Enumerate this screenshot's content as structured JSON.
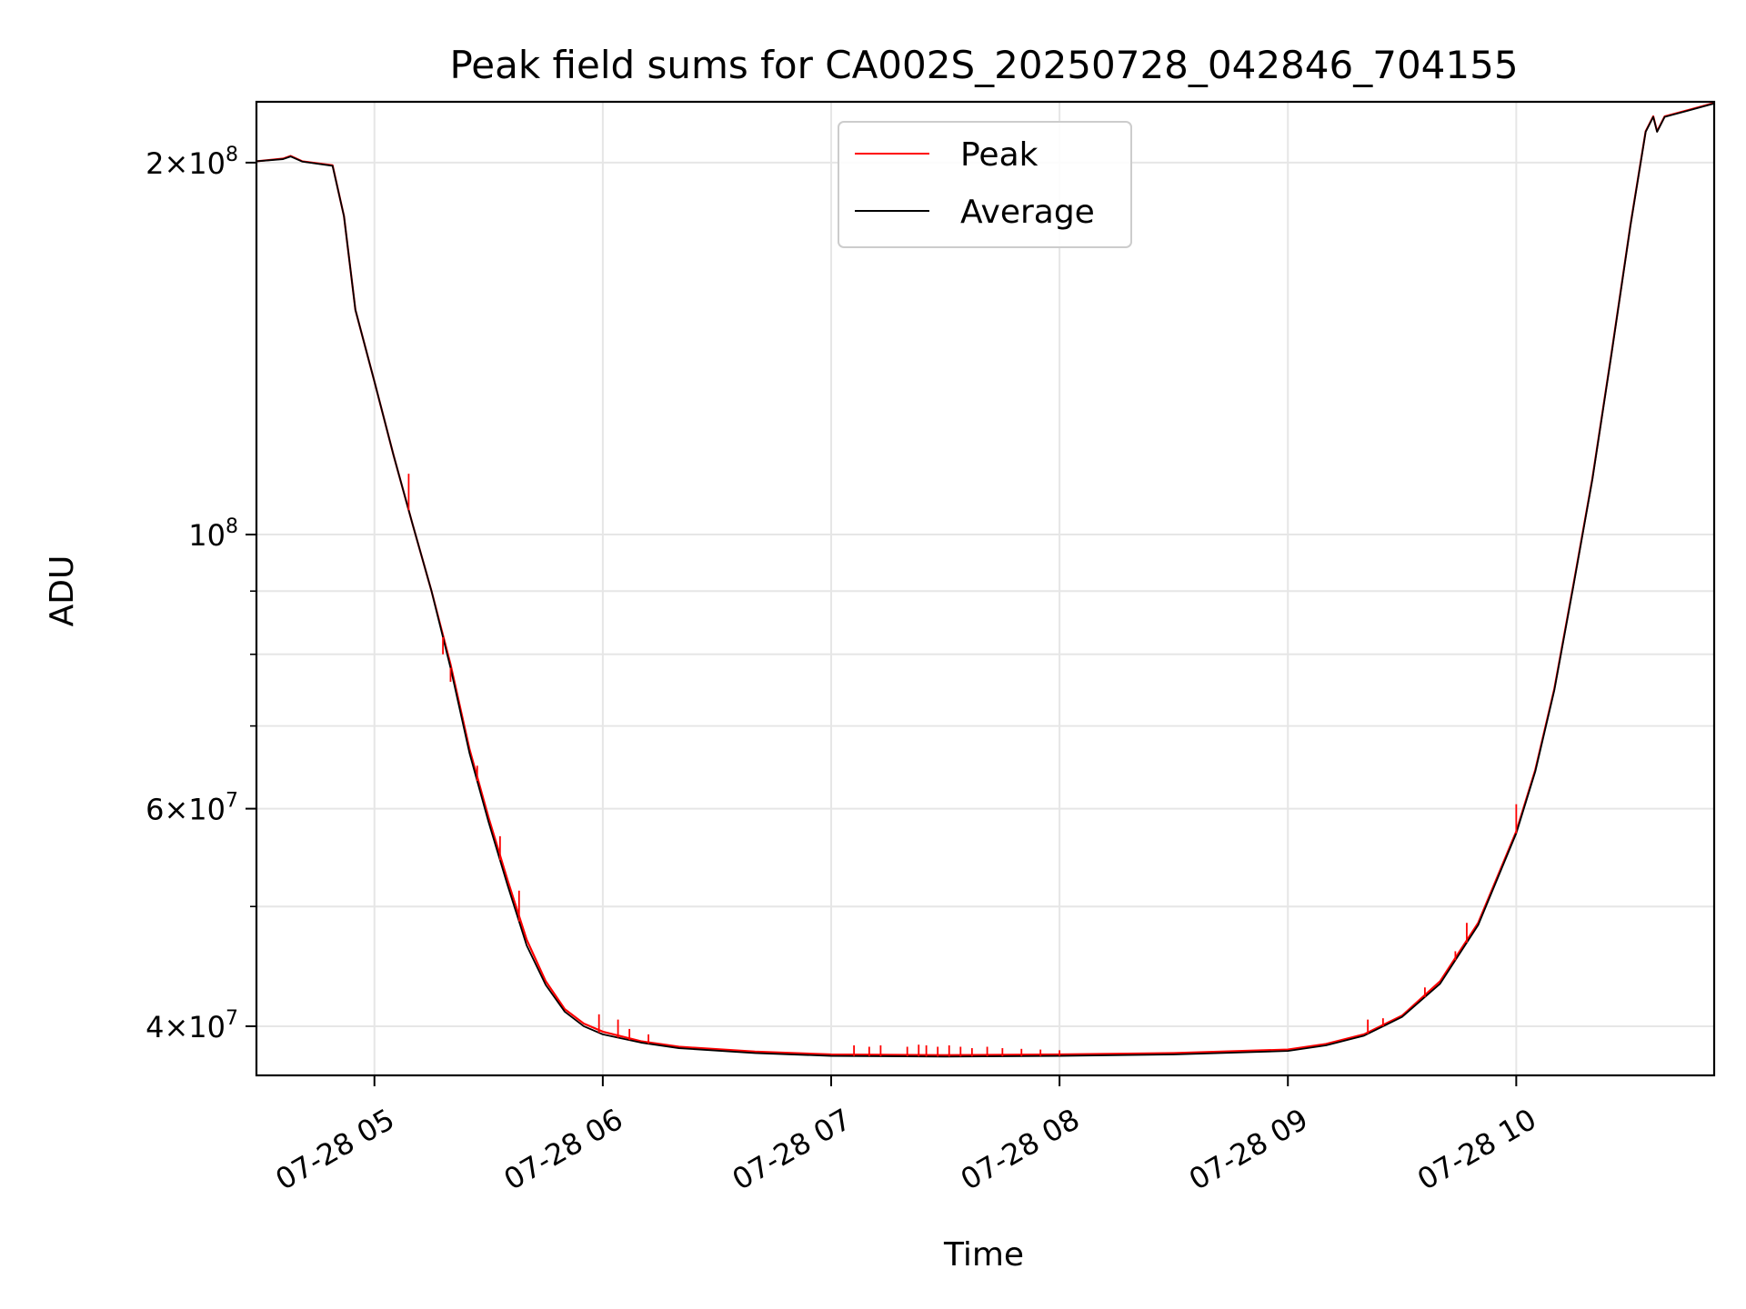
{
  "chart_data": {
    "type": "line",
    "title": "Peak field sums for CA002S_20250728_042846_704155",
    "xlabel": "Time",
    "ylabel": "ADU",
    "x_unit": "datetime",
    "x_range": [
      "2025-07-28 04:29",
      "2025-07-28 10:52"
    ],
    "xticks": [
      {
        "t": "2025-07-28 05:00",
        "label": "07-28 05"
      },
      {
        "t": "2025-07-28 06:00",
        "label": "07-28 06"
      },
      {
        "t": "2025-07-28 07:00",
        "label": "07-28 07"
      },
      {
        "t": "2025-07-28 08:00",
        "label": "07-28 08"
      },
      {
        "t": "2025-07-28 09:00",
        "label": "07-28 09"
      },
      {
        "t": "2025-07-28 10:00",
        "label": "07-28 10"
      }
    ],
    "yscale": "log",
    "ylim": [
      36500000,
      224000000
    ],
    "yticks_labeled": [
      {
        "v": 40000000,
        "mant": "4",
        "exp": "7"
      },
      {
        "v": 60000000,
        "mant": "6",
        "exp": "7"
      },
      {
        "v": 100000000,
        "mant": "",
        "exp": "8"
      },
      {
        "v": 200000000,
        "mant": "2",
        "exp": "8"
      }
    ],
    "yticks_minor": [
      50000000,
      70000000,
      80000000,
      90000000
    ],
    "grid": true,
    "legend_position": "upper-center",
    "series": [
      {
        "name": "Peak",
        "color": "#ff0000",
        "points": [
          [
            "2025-07-28 04:29",
            200500000
          ],
          [
            "2025-07-28 04:36",
            201500000
          ],
          [
            "2025-07-28 04:38",
            202500000
          ],
          [
            "2025-07-28 04:41",
            200500000
          ],
          [
            "2025-07-28 04:49",
            199000000
          ],
          [
            "2025-07-28 04:52",
            181000000
          ],
          [
            "2025-07-28 04:55",
            152000000
          ],
          [
            "2025-07-28 05:00",
            133000000
          ],
          [
            "2025-07-28 05:05",
            116000000
          ],
          [
            "2025-07-28 05:10",
            102000000
          ],
          [
            "2025-07-28 05:15",
            90000000
          ],
          [
            "2025-07-28 05:20",
            78500000
          ],
          [
            "2025-07-28 05:25",
            67000000
          ],
          [
            "2025-07-28 05:30",
            59000000
          ],
          [
            "2025-07-28 05:35",
            52500000
          ],
          [
            "2025-07-28 05:40",
            47000000
          ],
          [
            "2025-07-28 05:45",
            43500000
          ],
          [
            "2025-07-28 05:50",
            41300000
          ],
          [
            "2025-07-28 05:55",
            40200000
          ],
          [
            "2025-07-28 06:00",
            39600000
          ],
          [
            "2025-07-28 06:10",
            38900000
          ],
          [
            "2025-07-28 06:20",
            38500000
          ],
          [
            "2025-07-28 06:40",
            38150000
          ],
          [
            "2025-07-28 07:00",
            37950000
          ],
          [
            "2025-07-28 07:30",
            37900000
          ],
          [
            "2025-07-28 08:00",
            37950000
          ],
          [
            "2025-07-28 08:30",
            38050000
          ],
          [
            "2025-07-28 09:00",
            38300000
          ],
          [
            "2025-07-28 09:10",
            38700000
          ],
          [
            "2025-07-28 09:20",
            39400000
          ],
          [
            "2025-07-28 09:30",
            40800000
          ],
          [
            "2025-07-28 09:40",
            43500000
          ],
          [
            "2025-07-28 09:50",
            48500000
          ],
          [
            "2025-07-28 10:00",
            57500000
          ],
          [
            "2025-07-28 10:05",
            64500000
          ],
          [
            "2025-07-28 10:10",
            75000000
          ],
          [
            "2025-07-28 10:15",
            91000000
          ],
          [
            "2025-07-28 10:20",
            111000000
          ],
          [
            "2025-07-28 10:25",
            140000000
          ],
          [
            "2025-07-28 10:30",
            178000000
          ],
          [
            "2025-07-28 10:34",
            212000000
          ],
          [
            "2025-07-28 10:36",
            218000000
          ],
          [
            "2025-07-28 10:37",
            212000000
          ],
          [
            "2025-07-28 10:39",
            218000000
          ],
          [
            "2025-07-28 10:45",
            220500000
          ],
          [
            "2025-07-28 10:52",
            223500000
          ]
        ],
        "spikes": [
          [
            "2025-07-28 05:09",
            112000000
          ],
          [
            "2025-07-28 05:18",
            80000000
          ],
          [
            "2025-07-28 05:20",
            76000000
          ],
          [
            "2025-07-28 05:27",
            65000000
          ],
          [
            "2025-07-28 05:33",
            57000000
          ],
          [
            "2025-07-28 05:38",
            51500000
          ],
          [
            "2025-07-28 05:59",
            40900000
          ],
          [
            "2025-07-28 06:04",
            40500000
          ],
          [
            "2025-07-28 06:07",
            39800000
          ],
          [
            "2025-07-28 06:12",
            39400000
          ],
          [
            "2025-07-28 07:06",
            38600000
          ],
          [
            "2025-07-28 07:10",
            38500000
          ],
          [
            "2025-07-28 07:13",
            38600000
          ],
          [
            "2025-07-28 07:20",
            38500000
          ],
          [
            "2025-07-28 07:23",
            38650000
          ],
          [
            "2025-07-28 07:25",
            38600000
          ],
          [
            "2025-07-28 07:28",
            38500000
          ],
          [
            "2025-07-28 07:31",
            38600000
          ],
          [
            "2025-07-28 07:34",
            38500000
          ],
          [
            "2025-07-28 07:37",
            38400000
          ],
          [
            "2025-07-28 07:41",
            38500000
          ],
          [
            "2025-07-28 07:45",
            38400000
          ],
          [
            "2025-07-28 07:50",
            38350000
          ],
          [
            "2025-07-28 07:55",
            38300000
          ],
          [
            "2025-07-28 08:00",
            38250000
          ],
          [
            "2025-07-28 09:21",
            40500000
          ],
          [
            "2025-07-28 09:25",
            40600000
          ],
          [
            "2025-07-28 09:36",
            43000000
          ],
          [
            "2025-07-28 09:44",
            46000000
          ],
          [
            "2025-07-28 09:47",
            48500000
          ],
          [
            "2025-07-28 10:00",
            60500000
          ]
        ]
      },
      {
        "name": "Average",
        "color": "#000000",
        "points": [
          [
            "2025-07-28 04:29",
            200500000
          ],
          [
            "2025-07-28 04:36",
            201300000
          ],
          [
            "2025-07-28 04:38",
            202300000
          ],
          [
            "2025-07-28 04:41",
            200400000
          ],
          [
            "2025-07-28 04:49",
            198800000
          ],
          [
            "2025-07-28 04:52",
            181000000
          ],
          [
            "2025-07-28 04:55",
            152000000
          ],
          [
            "2025-07-28 05:00",
            133000000
          ],
          [
            "2025-07-28 05:05",
            116000000
          ],
          [
            "2025-07-28 05:10",
            102000000
          ],
          [
            "2025-07-28 05:15",
            90000000
          ],
          [
            "2025-07-28 05:20",
            78000000
          ],
          [
            "2025-07-28 05:25",
            66500000
          ],
          [
            "2025-07-28 05:30",
            58500000
          ],
          [
            "2025-07-28 05:35",
            52000000
          ],
          [
            "2025-07-28 05:40",
            46500000
          ],
          [
            "2025-07-28 05:45",
            43200000
          ],
          [
            "2025-07-28 05:50",
            41100000
          ],
          [
            "2025-07-28 05:55",
            40000000
          ],
          [
            "2025-07-28 06:00",
            39400000
          ],
          [
            "2025-07-28 06:10",
            38800000
          ],
          [
            "2025-07-28 06:20",
            38400000
          ],
          [
            "2025-07-28 06:40",
            38050000
          ],
          [
            "2025-07-28 07:00",
            37850000
          ],
          [
            "2025-07-28 07:30",
            37800000
          ],
          [
            "2025-07-28 08:00",
            37850000
          ],
          [
            "2025-07-28 08:30",
            37950000
          ],
          [
            "2025-07-28 09:00",
            38200000
          ],
          [
            "2025-07-28 09:10",
            38600000
          ],
          [
            "2025-07-28 09:20",
            39300000
          ],
          [
            "2025-07-28 09:30",
            40700000
          ],
          [
            "2025-07-28 09:40",
            43300000
          ],
          [
            "2025-07-28 09:50",
            48300000
          ],
          [
            "2025-07-28 10:00",
            57300000
          ],
          [
            "2025-07-28 10:05",
            64300000
          ],
          [
            "2025-07-28 10:10",
            74800000
          ],
          [
            "2025-07-28 10:15",
            90800000
          ],
          [
            "2025-07-28 10:20",
            110800000
          ],
          [
            "2025-07-28 10:25",
            139800000
          ],
          [
            "2025-07-28 10:30",
            177800000
          ],
          [
            "2025-07-28 10:34",
            211800000
          ],
          [
            "2025-07-28 10:36",
            217800000
          ],
          [
            "2025-07-28 10:37",
            211800000
          ],
          [
            "2025-07-28 10:39",
            217800000
          ],
          [
            "2025-07-28 10:45",
            220300000
          ],
          [
            "2025-07-28 10:52",
            223300000
          ]
        ]
      }
    ]
  }
}
